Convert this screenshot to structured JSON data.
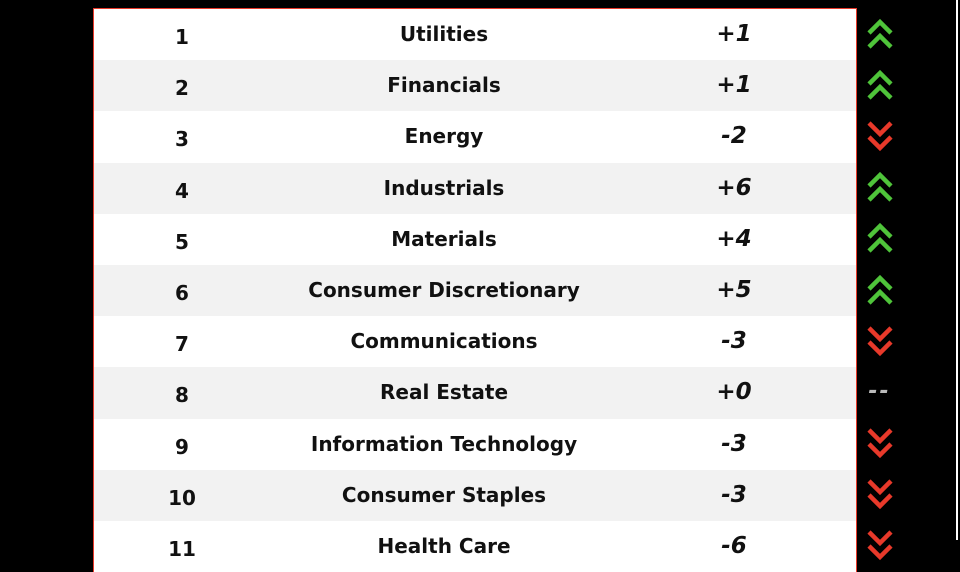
{
  "colors": {
    "up": "#4fc43a",
    "down": "#e8392a",
    "flat": "#bbbbbb",
    "border": "#e8392a"
  },
  "rows": [
    {
      "rank": "1",
      "sector": "Utilities",
      "change": "+1",
      "trend": "up"
    },
    {
      "rank": "2",
      "sector": "Financials",
      "change": "+1",
      "trend": "up"
    },
    {
      "rank": "3",
      "sector": "Energy",
      "change": "-2",
      "trend": "down"
    },
    {
      "rank": "4",
      "sector": "Industrials",
      "change": "+6",
      "trend": "up"
    },
    {
      "rank": "5",
      "sector": "Materials",
      "change": "+4",
      "trend": "up"
    },
    {
      "rank": "6",
      "sector": "Consumer Discretionary",
      "change": "+5",
      "trend": "up"
    },
    {
      "rank": "7",
      "sector": "Communications",
      "change": "-3",
      "trend": "down"
    },
    {
      "rank": "8",
      "sector": "Real Estate",
      "change": "+0",
      "trend": "flat",
      "flat_symbol": "--"
    },
    {
      "rank": "9",
      "sector": "Information Technology",
      "change": "-3",
      "trend": "down"
    },
    {
      "rank": "10",
      "sector": "Consumer Staples",
      "change": "-3",
      "trend": "down"
    },
    {
      "rank": "11",
      "sector": "Health Care",
      "change": "-6",
      "trend": "down"
    }
  ]
}
